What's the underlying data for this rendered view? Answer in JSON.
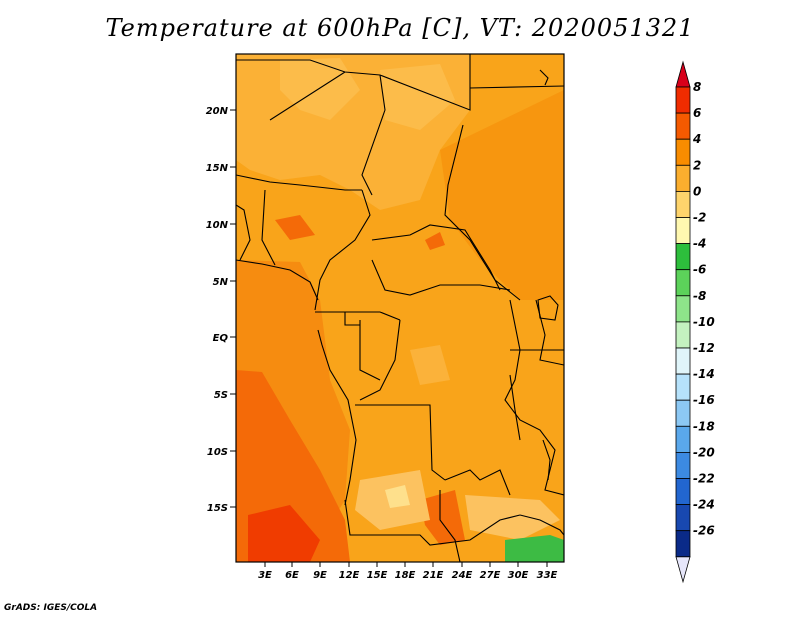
{
  "title": "Temperature at 600hPa [C], VT: 2020051321",
  "credit": "GrADS: IGES/COLA",
  "map": {
    "lat_ticks": [
      "20N",
      "15N",
      "10N",
      "5N",
      "EQ",
      "5S",
      "10S",
      "15S"
    ],
    "lon_ticks": [
      "3E",
      "6E",
      "9E",
      "12E",
      "15E",
      "18E",
      "21E",
      "24E",
      "27E",
      "30E",
      "33E"
    ]
  },
  "colorbar": {
    "labels": [
      "8",
      "6",
      "4",
      "2",
      "0",
      "-2",
      "-4",
      "-6",
      "-8",
      "-10",
      "-12",
      "-14",
      "-16",
      "-18",
      "-20",
      "-22",
      "-24",
      "-26"
    ],
    "colors": [
      "#d8001b",
      "#f02c00",
      "#f55a00",
      "#f88c00",
      "#fbae2e",
      "#fed46c",
      "#fff8b0",
      "#2dbe3c",
      "#5cd25a",
      "#8ee48a",
      "#c4f2c0",
      "#e0f5fa",
      "#b6e2fb",
      "#8cc8f4",
      "#5aa8ec",
      "#3c8ae2",
      "#2266d0",
      "#1848b0",
      "#0a2a88",
      "#0a1060"
    ]
  }
}
